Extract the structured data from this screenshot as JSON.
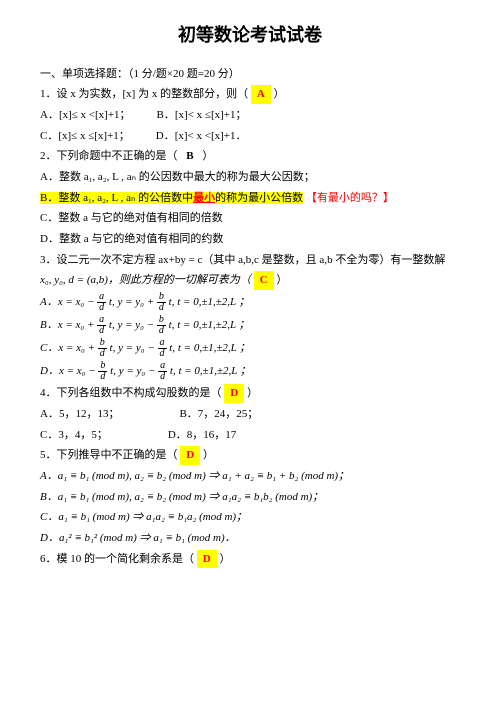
{
  "title": "初等数论考试试卷",
  "section1_header": "一、单项选择题：（1 分/题×20 题=20 分）",
  "q1": {
    "stem": "1．设 x 为实数，[x] 为 x 的整数部分，则（",
    "answer": "A",
    "close": "）",
    "optA": "A．[x]≤ x <[x]+1；",
    "optB": "B．[x]< x ≤[x]+1；",
    "optC": "C．[x]≤ x ≤[x]+1；",
    "optD": "D．[x]< x <[x]+1．"
  },
  "q2": {
    "stem": "2．下列命题中不正确的是（",
    "answer": "B",
    "close": "）",
    "optA_pre": "A．整数 a₁, a₂, L , aₙ 的公因数中最大的称为最大公因数；",
    "optB_pre": "B．整数 a₁, a₂, L , aₙ 的公倍数中",
    "optB_mid": "最小",
    "optB_post": "的称为最小公倍数",
    "optB_note": "【有最小的吗？】",
    "optC": "C．整数 a 与它的绝对值有相同的倍数",
    "optD": "D．整数 a 与它的绝对值有相同的约数"
  },
  "q3": {
    "stem_a": "3．设二元一次不定方程 ax+by = c（其中 a,b,c 是整数，且 a,b 不全为零）有一整数解",
    "stem_b": "x₀, y₀, d = (a,b)，则此方程的一切解可表为（",
    "answer": "C",
    "close": "）",
    "optA_l": "A．x = x₀ −",
    "optA_m": "t, y = y₀ +",
    "optA_r": "t, t = 0,±1,±2,L ；",
    "optB_l": "B．x = x₀ +",
    "optB_m": "t, y = y₀ −",
    "optB_r": "t, t = 0,±1,±2,L ；",
    "optC_l": "C．x = x₀ +",
    "optC_m": "t, y = y₀ −",
    "optC_r": "t, t = 0,±1,±2,L ；",
    "optD_l": "D．x = x₀ −",
    "optD_m": "t, y = y₀ −",
    "optD_r": "t, t = 0,±1,±2,L ；",
    "frac_a": {
      "num": "a",
      "den": "d"
    },
    "frac_b": {
      "num": "b",
      "den": "d"
    }
  },
  "q4": {
    "stem": "4．下列各组数中不构成勾股数的是（",
    "answer": "D",
    "close": "）",
    "optA": "A．5，12，13；",
    "optB": "B．7，24，25；",
    "optC": "C．3，4，5；",
    "optD": "D．8，16，17"
  },
  "q5": {
    "stem": "5．下列推导中不正确的是（",
    "answer": "D",
    "close": "）",
    "optA": "A．a₁ ≡ b₁ (mod m), a₂ ≡ b₂ (mod m) ⇒ a₁ + a₂ ≡ b₁ + b₂ (mod m)；",
    "optB": "B．a₁ ≡ b₁ (mod m), a₂ ≡ b₂ (mod m) ⇒ a₁a₂ ≡ b₁b₂ (mod m)；",
    "optC": "C．a₁ ≡ b₁ (mod m) ⇒ a₁a₂ ≡ b₁a₂ (mod m)；",
    "optD": "D．a₁² ≡ b₁² (mod m) ⇒ a₁ ≡ b₁ (mod m)．"
  },
  "q6": {
    "stem": "6．模 10 的一个简化剩余系是（",
    "answer": "D",
    "close": "）"
  },
  "colors": {
    "text": "#000000",
    "bg": "#ffffff",
    "highlight": "#ffff00",
    "red": "#ff0000"
  }
}
